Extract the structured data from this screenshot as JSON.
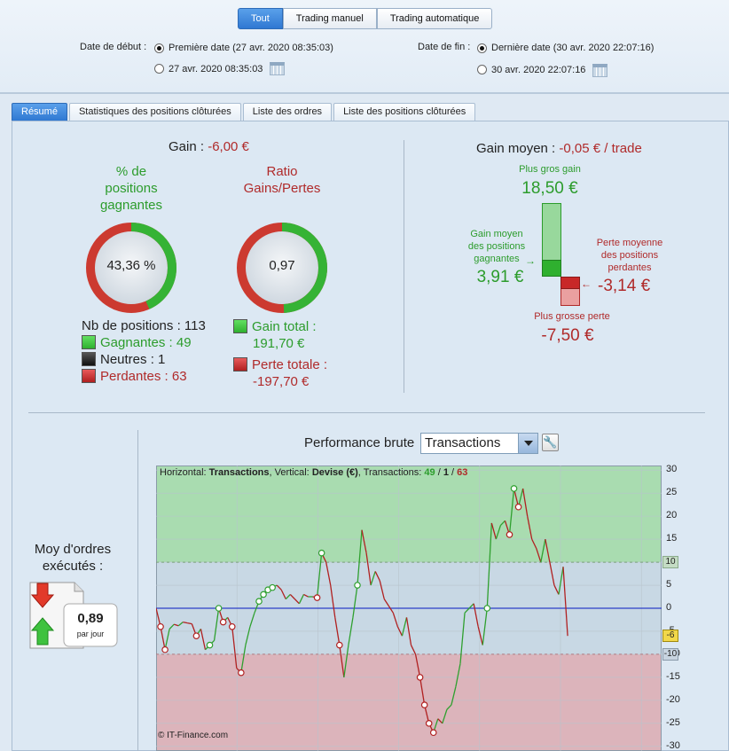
{
  "filter_tabs": [
    "Tout",
    "Trading manuel",
    "Trading automatique"
  ],
  "start": {
    "label": "Date de début :",
    "option1": "Première date (27 avr. 2020 08:35:03)",
    "option2": "27 avr. 2020 08:35:03"
  },
  "end": {
    "label": "Date de fin :",
    "option1": "Dernière date (30 avr. 2020 22:07:16)",
    "option2": "30 avr. 2020 22:07:16"
  },
  "tabs": [
    "Résumé",
    "Statistiques des positions clôturées",
    "Liste des ordres",
    "Liste des positions clôturées"
  ],
  "gain": {
    "label": "Gain :",
    "value": "-6,00 €"
  },
  "win_pct": {
    "title_l1": "% de",
    "title_l2": "positions",
    "title_l3": "gagnantes",
    "value": "43,36 %",
    "fraction": 0.4336
  },
  "ratio": {
    "title_l1": "Ratio",
    "title_l2": "Gains/Pertes",
    "value": "0,97",
    "fraction": 0.492
  },
  "counts": {
    "total": "Nb de positions : 113",
    "winners": "Gagnantes : 49",
    "neutral": "Neutres : 1",
    "losers": "Perdantes : 63"
  },
  "totals": {
    "gain_label": "Gain total :",
    "gain_value": "191,70 €",
    "loss_label": "Perte totale :",
    "loss_value": "-197,70 €"
  },
  "avg": {
    "label": "Gain moyen :",
    "value": "-0,05 € / trade",
    "biggest_gain_label": "Plus gros gain",
    "biggest_gain": "18,50 €",
    "avg_win_l1": "Gain moyen",
    "avg_win_l2": "des positions",
    "avg_win_l3": "gagnantes",
    "avg_win": "3,91 €",
    "avg_loss_l1": "Perte moyenne",
    "avg_loss_l2": "des positions",
    "avg_loss_l3": "perdantes",
    "avg_loss": "-3,14 €",
    "biggest_loss_label": "Plus grosse perte",
    "biggest_loss": "-7,50 €"
  },
  "orders": {
    "l1": "Moy d'ordres",
    "l2": "exécutés :",
    "value": "0,89",
    "unit": "par jour"
  },
  "perf": {
    "label": "Performance brute",
    "select": "Transactions",
    "wrench": "🔧"
  },
  "chart_header": {
    "h_label": "Horizontal:",
    "h_value": "Transactions",
    "v_label": ", Vertical:",
    "v_value": "Devise (€)",
    "t_label": ", Transactions:",
    "wins": "49",
    "sep1": " / ",
    "neutral": "1",
    "sep2": " / ",
    "losses": "63"
  },
  "copyright": "© IT-Finance.com",
  "colors": {
    "green_zone": "#a9dcb0",
    "red_zone": "#dcb4bb",
    "mid_zone": "#c8d8e4",
    "line_up": "#2fa02f",
    "line_down": "#b02020",
    "baseline": "#2b3fc8"
  },
  "chart_data": {
    "type": "line",
    "ylim": [
      -31,
      31
    ],
    "xlim": [
      0,
      113
    ],
    "yticks": [
      30,
      25,
      20,
      15,
      10,
      5,
      0,
      -5,
      -10,
      -15,
      -20,
      -25,
      -30
    ],
    "bands": {
      "upper": 10,
      "lower": -10
    },
    "markers": {
      "current": -6,
      "upper": 10,
      "lower": -10
    },
    "y": [
      0,
      -4,
      -9,
      -4.5,
      -3.5,
      -3.8,
      -3,
      -3.2,
      -3.4,
      -6,
      -4.5,
      -9,
      -8,
      -7,
      0,
      -3,
      -2,
      -4,
      -13,
      -14,
      -8,
      -4,
      -1,
      1.5,
      3,
      4,
      4.5,
      5,
      4,
      2,
      3,
      2,
      1,
      3,
      2.5,
      2.5,
      2.3,
      12,
      10,
      5,
      -2,
      -8,
      -15,
      -8,
      -2,
      5,
      17,
      12,
      5,
      8,
      6,
      2,
      0.5,
      -1,
      -4,
      -6,
      -2,
      -8,
      -10,
      -15,
      -21,
      -25,
      -27,
      -24,
      -25,
      -22,
      -21,
      -17,
      -12,
      -1,
      0,
      1,
      -4,
      -8,
      0,
      18.5,
      15,
      18,
      19,
      16,
      26,
      22,
      26,
      20,
      15,
      13,
      10,
      15,
      10,
      5,
      3,
      9,
      -6
    ],
    "circles": [
      1,
      2,
      9,
      12,
      14,
      15,
      17,
      19,
      23,
      24,
      25,
      26,
      36,
      37,
      41,
      45,
      59,
      60,
      61,
      62,
      74,
      79,
      80,
      81
    ]
  }
}
